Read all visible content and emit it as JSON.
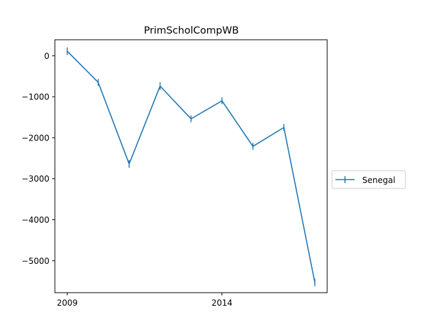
{
  "chart_data": {
    "type": "line",
    "title": "PrimScholCompWB",
    "xlabel": "",
    "ylabel": "",
    "x": [
      2009,
      2010,
      2011,
      2012,
      2013,
      2014,
      2015,
      2016,
      2017
    ],
    "series": [
      {
        "name": "Senegal",
        "color": "#1f77b4",
        "values": [
          110,
          -650,
          -2640,
          -740,
          -1540,
          -1100,
          -2210,
          -1750,
          -5530
        ],
        "errors": [
          60,
          50,
          60,
          60,
          50,
          50,
          50,
          50,
          60
        ]
      }
    ],
    "xlim": [
      2008.6,
      2017.4
    ],
    "ylim": [
      -5780,
      390
    ],
    "xticks": [
      2009,
      2014
    ],
    "xtick_labels": [
      "2009",
      "2014"
    ],
    "yticks": [
      0,
      -1000,
      -2000,
      -3000,
      -4000,
      -5000
    ],
    "ytick_labels": [
      "0",
      "−1000",
      "−2000",
      "−3000",
      "−4000",
      "−5000"
    ],
    "grid": false,
    "legend": {
      "placement": "right, outside plot",
      "entries": [
        "Senegal"
      ]
    }
  }
}
